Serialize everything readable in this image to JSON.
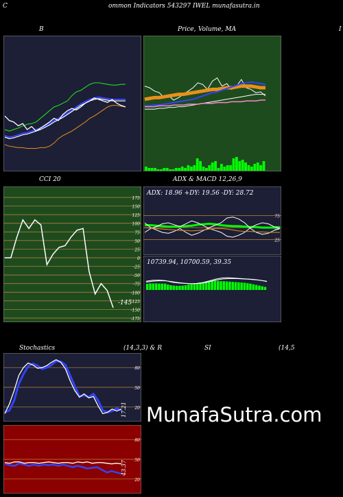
{
  "header": {
    "title": "ommon  Indicators 543297 IWEL  munafasutra.in",
    "left_mark": "C"
  },
  "colors": {
    "bg": "#000000",
    "panel_navy": "#1c1f36",
    "panel_green": "#1e4b1e",
    "panel_darkred": "#8b0000",
    "grid_orange": "#c8873a",
    "white": "#ffffff",
    "blue": "#3344ff",
    "green": "#22cc22",
    "orange": "#e8901c",
    "pink": "#ff88cc",
    "bright_green": "#00ff00"
  },
  "labels": {
    "bollinger": "B",
    "price_title": "Price,",
    "price_title_overlap": "Volume, MA",
    "right_edge_mark": "I",
    "cci_title": "CCI 20",
    "adx_macd_title": "ADX  & MACD 12,26,9",
    "adx_readout": "ADX: 18.96   +DY: 19.56   -DY: 28.72",
    "macd_readout": "10739.94,  10700.59,  39.35",
    "stoch_title": "Stochastics",
    "stoch_params": "(14,3,3) & R",
    "rsi_title": "SI",
    "rsi_params": "(14,5",
    "cci_value": "-145",
    "stoch_value": "17.21",
    "rsi_value": "43.37",
    "watermark": "MunafaSutra.com"
  },
  "chart_data": [
    {
      "id": "bollinger",
      "type": "line",
      "ylim": [
        0,
        100
      ],
      "series": [
        {
          "values": [
            30,
            28,
            30,
            32,
            35,
            37,
            38,
            40,
            45,
            50,
            55,
            60,
            62,
            65,
            68,
            75,
            80,
            82,
            86,
            90,
            92,
            92,
            91,
            90,
            89,
            89,
            90,
            90
          ],
          "color": "#22cc22"
        },
        {
          "values": [
            22,
            20,
            21,
            23,
            25,
            26,
            28,
            30,
            32,
            35,
            38,
            42,
            45,
            48,
            52,
            56,
            60,
            64,
            67,
            70,
            72,
            73,
            72,
            71,
            70,
            70,
            70,
            70
          ],
          "color": "#3344ff"
        },
        {
          "values": [
            20,
            18,
            19,
            21,
            23,
            24,
            26,
            28,
            30,
            33,
            36,
            40,
            43,
            46,
            50,
            54,
            58,
            62,
            65,
            68,
            70,
            71,
            70,
            69,
            68,
            68,
            68,
            68
          ],
          "color": "#ffffff"
        },
        {
          "values": [
            10,
            8,
            7,
            6,
            6,
            5,
            5,
            5,
            6,
            6,
            8,
            12,
            18,
            22,
            25,
            28,
            32,
            36,
            40,
            45,
            48,
            52,
            56,
            60,
            62,
            62,
            61,
            60
          ],
          "color": "#e8901c"
        },
        {
          "values": [
            48,
            42,
            40,
            35,
            38,
            30,
            34,
            28,
            32,
            36,
            40,
            45,
            42,
            50,
            55,
            58,
            56,
            60,
            65,
            68,
            72,
            70,
            68,
            66,
            70,
            65,
            62,
            60
          ],
          "color": "#ffffff"
        }
      ]
    },
    {
      "id": "price",
      "type": "line",
      "ylim": [
        0,
        100
      ],
      "series": [
        {
          "values": [
            72,
            70,
            66,
            64,
            58,
            60,
            55,
            58,
            62,
            66,
            70,
            76,
            74,
            68,
            78,
            82,
            72,
            75,
            68,
            72,
            80,
            70,
            68,
            64,
            65,
            60
          ],
          "color": "#ffffff"
        },
        {
          "values": [
            56,
            57,
            58,
            58,
            59,
            60,
            61,
            62,
            62,
            63,
            64,
            65,
            66,
            67,
            68,
            68,
            69,
            70,
            70,
            71,
            72,
            72,
            72,
            71,
            70,
            70
          ],
          "color": "#e8901c"
        },
        {
          "values": [
            48,
            48,
            49,
            49,
            50,
            51,
            52,
            53,
            54,
            55,
            56,
            58,
            60,
            62,
            64,
            65,
            67,
            69,
            71,
            73,
            75,
            76,
            77,
            76,
            75,
            74
          ],
          "color": "#3344ff"
        },
        {
          "values": [
            44,
            44,
            44,
            45,
            45,
            46,
            46,
            47,
            47,
            48,
            49,
            50,
            51,
            52,
            53,
            54,
            55,
            56,
            57,
            58,
            59,
            60,
            61,
            62,
            62,
            62
          ],
          "color": "#ffffff"
        },
        {
          "values": [
            47,
            47,
            47,
            48,
            48,
            48,
            49,
            49,
            49,
            50,
            50,
            50,
            51,
            51,
            51,
            52,
            52,
            52,
            53,
            53,
            53,
            54,
            54,
            54,
            55,
            55
          ],
          "color": "#ff88cc"
        }
      ],
      "volume": [
        3,
        2,
        2,
        2,
        1,
        1,
        2,
        2,
        1,
        1,
        2,
        2,
        3,
        2,
        4,
        3,
        4,
        9,
        7,
        3,
        2,
        4,
        6,
        7,
        2,
        5,
        3,
        4,
        4,
        9,
        10,
        7,
        8,
        6,
        4,
        3,
        5,
        6,
        4,
        7
      ]
    },
    {
      "id": "cci",
      "type": "line",
      "ylim": [
        -175,
        175
      ],
      "ticks": [
        175,
        150,
        125,
        100,
        75,
        50,
        25,
        0,
        -25,
        -50,
        -75,
        -100,
        -125,
        -150,
        -175
      ],
      "series": [
        {
          "values": [
            0,
            0,
            60,
            110,
            85,
            110,
            95,
            -20,
            10,
            30,
            35,
            60,
            80,
            85,
            -40,
            -105,
            -75,
            -95,
            -145
          ],
          "color": "#ffffff"
        }
      ]
    },
    {
      "id": "adx",
      "type": "line",
      "ylim": [
        0,
        100
      ],
      "ticks": [
        75,
        50,
        25
      ],
      "series": [
        {
          "values": [
            55,
            55,
            54,
            53,
            52,
            52,
            52,
            53,
            54,
            56,
            57,
            58,
            57,
            55,
            54,
            53,
            53,
            52,
            51,
            51,
            50,
            50,
            50,
            51
          ],
          "color": "#00ff00"
        },
        {
          "values": [
            60,
            50,
            45,
            40,
            38,
            42,
            48,
            40,
            34,
            38,
            44,
            50,
            55,
            60,
            70,
            72,
            68,
            60,
            48,
            40,
            36,
            38,
            44,
            48
          ],
          "color": "#ffffff"
        },
        {
          "values": [
            40,
            48,
            52,
            58,
            60,
            56,
            52,
            58,
            64,
            60,
            54,
            48,
            44,
            40,
            32,
            30,
            34,
            40,
            50,
            56,
            60,
            58,
            52,
            48
          ],
          "color": "#ffffff"
        },
        {
          "values": [
            50,
            49,
            48,
            47,
            46,
            45,
            44,
            44,
            43,
            44,
            45,
            47,
            48,
            48,
            47,
            45,
            43,
            42,
            42,
            41,
            41,
            40,
            40,
            40
          ],
          "color": "#e8901c"
        }
      ]
    },
    {
      "id": "macd",
      "type": "bar",
      "ylim": [
        0,
        100
      ],
      "values": [
        28,
        30,
        30,
        30,
        29,
        29,
        29,
        25,
        22,
        20,
        19,
        19,
        20,
        22,
        24,
        26,
        28,
        30,
        34,
        36,
        39,
        40,
        42,
        42,
        41,
        40,
        40,
        39,
        38,
        37,
        36,
        35,
        34,
        33,
        31,
        29,
        26,
        23,
        20,
        17,
        14
      ],
      "lines": [
        {
          "values": [
            40,
            44,
            45,
            43,
            36,
            32,
            30,
            28,
            30,
            34,
            42,
            50,
            55,
            56,
            54,
            52,
            50,
            48,
            44,
            38
          ],
          "color": "#ffffff"
        },
        {
          "values": [
            36,
            40,
            42,
            42,
            38,
            34,
            31,
            29,
            29,
            32,
            38,
            45,
            50,
            52,
            52,
            51,
            49,
            47,
            44,
            40
          ],
          "color": "#ffffff"
        }
      ]
    },
    {
      "id": "stochastics",
      "type": "line",
      "ylim": [
        0,
        100
      ],
      "ticks": [
        80,
        50,
        20
      ],
      "series": [
        {
          "values": [
            12,
            15,
            30,
            55,
            70,
            82,
            86,
            83,
            78,
            80,
            84,
            90,
            89,
            84,
            68,
            52,
            36,
            38,
            35,
            40,
            30,
            15,
            12,
            14,
            18,
            15
          ],
          "color": "#3344ff"
        },
        {
          "values": [
            10,
            25,
            45,
            68,
            80,
            87,
            84,
            79,
            80,
            83,
            88,
            92,
            88,
            78,
            60,
            45,
            35,
            40,
            34,
            36,
            22,
            10,
            12,
            17,
            14,
            17
          ],
          "color": "#ffffff"
        }
      ]
    },
    {
      "id": "rsi",
      "type": "line",
      "ylim": [
        0,
        100
      ],
      "ticks": [
        80,
        50,
        20
      ],
      "series": [
        {
          "values": [
            43,
            41,
            40,
            44,
            42,
            40,
            42,
            40,
            42,
            41,
            42,
            40,
            42,
            40,
            38,
            40,
            38,
            36,
            37,
            38,
            34,
            30,
            32,
            30,
            28
          ],
          "color": "#3344ff"
        },
        {
          "values": [
            45,
            44,
            46,
            46,
            44,
            45,
            45,
            44,
            45,
            46,
            45,
            44,
            45,
            45,
            44,
            46,
            45,
            46,
            44,
            45,
            45,
            44,
            43,
            44,
            43
          ],
          "color": "#ffffff"
        }
      ]
    }
  ]
}
